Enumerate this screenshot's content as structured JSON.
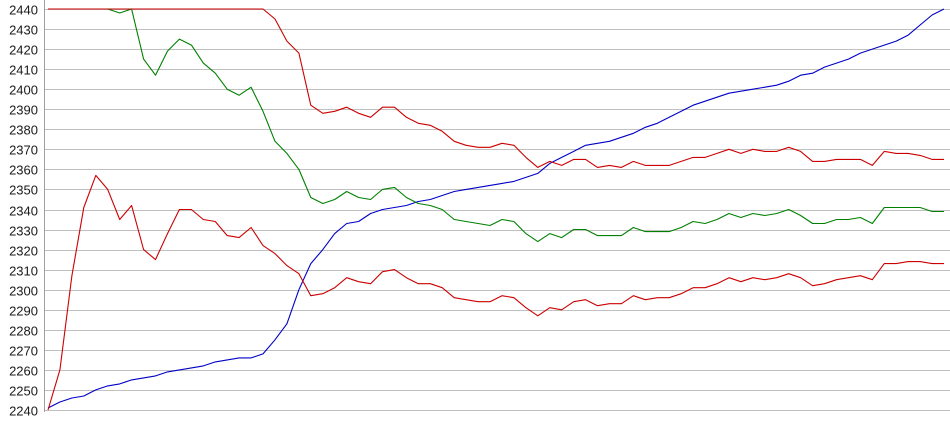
{
  "chart_data": {
    "type": "line",
    "title": "",
    "xlabel": "",
    "ylabel": "",
    "ylim": [
      2240,
      2440
    ],
    "ytick_step": 10,
    "yticks": [
      "2240",
      "2250",
      "2260",
      "2270",
      "2280",
      "2290",
      "2300",
      "2310",
      "2320",
      "2330",
      "2340",
      "2350",
      "2360",
      "2370",
      "2380",
      "2390",
      "2400",
      "2410",
      "2420",
      "2430",
      "2440"
    ],
    "grid": true,
    "legend": "none",
    "x": [
      0,
      1,
      2,
      3,
      4,
      5,
      6,
      7,
      8,
      9,
      10,
      11,
      12,
      13,
      14,
      15,
      16,
      17,
      18,
      19,
      20,
      21,
      22,
      23,
      24,
      25,
      26,
      27,
      28,
      29,
      30,
      31,
      32,
      33,
      34,
      35,
      36,
      37,
      38,
      39,
      40,
      41,
      42,
      43,
      44,
      45,
      46,
      47,
      48,
      49,
      50,
      51,
      52,
      53,
      54,
      55,
      56,
      57,
      58,
      59,
      60,
      61,
      62,
      63,
      64,
      65,
      66,
      67,
      68,
      69,
      70,
      71,
      72,
      73,
      74,
      75
    ],
    "series": [
      {
        "color": "#0000c8",
        "values": [
          2241,
          2244,
          2246,
          2247,
          2250,
          2252,
          2253,
          2255,
          2256,
          2257,
          2259,
          2260,
          2261,
          2262,
          2264,
          2265,
          2266,
          2266,
          2268,
          2275,
          2283,
          2300,
          2313,
          2320,
          2328,
          2333,
          2334,
          2338,
          2340,
          2341,
          2342,
          2344,
          2345,
          2347,
          2349,
          2350,
          2351,
          2352,
          2353,
          2354,
          2356,
          2358,
          2363,
          2366,
          2369,
          2372,
          2373,
          2374,
          2376,
          2378,
          2381,
          2383,
          2386,
          2389,
          2392,
          2394,
          2396,
          2398,
          2399,
          2400,
          2401,
          2402,
          2404,
          2407,
          2408,
          2411,
          2413,
          2415,
          2418,
          2420,
          2422,
          2424,
          2427,
          2432,
          2437,
          2440
        ]
      },
      {
        "color": "#cc0000",
        "values": [
          2240,
          2260,
          2307,
          2341,
          2357,
          2350,
          2335,
          2342,
          2320,
          2315,
          2328,
          2340,
          2340,
          2335,
          2334,
          2327,
          2326,
          2331,
          2322,
          2318,
          2312,
          2308,
          2297,
          2298,
          2301,
          2306,
          2304,
          2303,
          2309,
          2310,
          2306,
          2303,
          2303,
          2301,
          2296,
          2295,
          2294,
          2294,
          2297,
          2296,
          2291,
          2287,
          2291,
          2290,
          2294,
          2295,
          2292,
          2293,
          2293,
          2297,
          2295,
          2296,
          2296,
          2298,
          2301,
          2301,
          2303,
          2306,
          2304,
          2306,
          2305,
          2306,
          2308,
          2306,
          2302,
          2303,
          2305,
          2306,
          2307,
          2305,
          2313,
          2313,
          2314,
          2314,
          2313,
          2313
        ]
      },
      {
        "color": "#008000",
        "values": [
          2440,
          2440,
          2440,
          2440,
          2440,
          2440,
          2438,
          2440,
          2415,
          2407,
          2419,
          2425,
          2422,
          2413,
          2408,
          2400,
          2397,
          2401,
          2389,
          2374,
          2368,
          2360,
          2346,
          2343,
          2345,
          2349,
          2346,
          2345,
          2350,
          2351,
          2346,
          2343,
          2342,
          2340,
          2335,
          2334,
          2333,
          2332,
          2335,
          2334,
          2328,
          2324,
          2328,
          2326,
          2330,
          2330,
          2327,
          2327,
          2327,
          2331,
          2329,
          2329,
          2329,
          2331,
          2334,
          2333,
          2335,
          2338,
          2336,
          2338,
          2337,
          2338,
          2340,
          2337,
          2333,
          2333,
          2335,
          2335,
          2336,
          2333,
          2341,
          2341,
          2341,
          2341,
          2339,
          2339
        ]
      },
      {
        "color": "#cc0000",
        "values": [
          2440,
          2440,
          2440,
          2440,
          2440,
          2440,
          2440,
          2440,
          2440,
          2440,
          2440,
          2440,
          2440,
          2440,
          2440,
          2440,
          2440,
          2440,
          2440,
          2435,
          2424,
          2418,
          2392,
          2388,
          2389,
          2391,
          2388,
          2386,
          2391,
          2391,
          2386,
          2383,
          2382,
          2379,
          2374,
          2372,
          2371,
          2371,
          2373,
          2372,
          2366,
          2361,
          2364,
          2362,
          2365,
          2365,
          2361,
          2362,
          2361,
          2364,
          2362,
          2362,
          2362,
          2364,
          2366,
          2366,
          2368,
          2370,
          2368,
          2370,
          2369,
          2369,
          2371,
          2369,
          2364,
          2364,
          2365,
          2365,
          2365,
          2362,
          2369,
          2368,
          2368,
          2367,
          2365,
          2365
        ]
      }
    ]
  }
}
